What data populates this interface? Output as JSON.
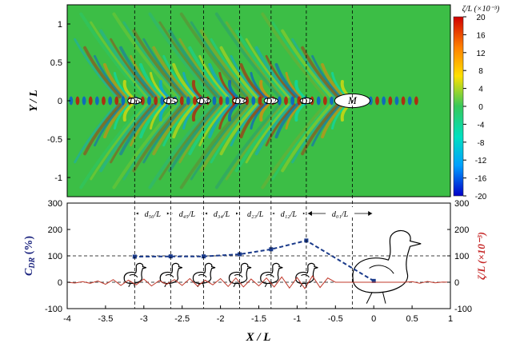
{
  "chart_data": [
    {
      "type": "heatmap",
      "xlim": [
        -4,
        1
      ],
      "ylim": [
        -1.25,
        1.25
      ],
      "y_ticks": [
        "1",
        "0.5",
        "0",
        "-0.5",
        "-1"
      ],
      "ylabel": "Y / L",
      "colorbar": {
        "title": "ζ/L (×10⁻³)",
        "range": [
          -20,
          20
        ],
        "ticks": [
          "20",
          "16",
          "12",
          "8",
          "4",
          "0",
          "-4",
          "-8",
          "-12",
          "-16",
          "-20"
        ],
        "colors": [
          "#0000c8",
          "#00a0ff",
          "#00e0c0",
          "#36c85a",
          "#ffe000",
          "#ff8000",
          "#d00000"
        ]
      },
      "background_color": "#3cbe46",
      "bodies": [
        {
          "label": "M",
          "x": -0.28,
          "y": 0,
          "rx": 0.23,
          "ry": 0.09
        },
        {
          "label": "D1",
          "x": -0.88,
          "y": 0,
          "rx": 0.08,
          "ry": 0.038
        },
        {
          "label": "D2",
          "x": -1.34,
          "y": 0,
          "rx": 0.09,
          "ry": 0.04
        },
        {
          "label": "D3",
          "x": -1.75,
          "y": 0,
          "rx": 0.09,
          "ry": 0.04
        },
        {
          "label": "D4",
          "x": -2.22,
          "y": 0,
          "rx": 0.09,
          "ry": 0.04
        },
        {
          "label": "D5",
          "x": -2.65,
          "y": 0,
          "rx": 0.09,
          "ry": 0.04
        },
        {
          "label": "D6",
          "x": -3.12,
          "y": 0,
          "rx": 0.09,
          "ry": 0.04
        }
      ]
    },
    {
      "type": "line",
      "xlabel": "X / L",
      "xlim": [
        -4,
        1
      ],
      "x_ticks": [
        "-4",
        "-3.5",
        "-3",
        "-2.5",
        "-2",
        "-1.5",
        "-1",
        "-0.5",
        "0",
        "0.5",
        "1"
      ],
      "left_axis": {
        "label": "C_DR (%)",
        "label_main": "C",
        "label_sub": "DR",
        "label_unit": " (%)",
        "range": [
          -100,
          300
        ],
        "ticks": [
          "300",
          "200",
          "100",
          "0",
          "-100"
        ],
        "color": "#1a237e"
      },
      "right_axis": {
        "label": "ζ/L (×10⁻³)",
        "range": [
          -100,
          300
        ],
        "ticks": [
          "300",
          "200",
          "100",
          "0",
          "-100"
        ],
        "color": "#c62828"
      },
      "series": [
        {
          "axis": "left",
          "color": "#1a3a8a",
          "x": [
            0,
            -0.88,
            -1.34,
            -1.75,
            -2.22,
            -2.65,
            -3.12
          ],
          "y": [
            5,
            158,
            125,
            106,
            98,
            98,
            97
          ]
        },
        {
          "axis": "right",
          "color": "#c0392b",
          "x": [
            -4,
            -3.9,
            -3.8,
            -3.7,
            -3.6,
            -3.5,
            -3.4,
            -3.3,
            -3.2,
            -3.1,
            -3.0,
            -2.9,
            -2.8,
            -2.7,
            -2.6,
            -2.5,
            -2.4,
            -2.3,
            -2.2,
            -2.1,
            -2.0,
            -1.9,
            -1.8,
            -1.7,
            -1.6,
            -1.5,
            -1.4,
            -1.3,
            -1.2,
            -1.1,
            -1.0,
            -0.9,
            -0.8,
            -0.7,
            -0.6,
            -0.5,
            -0.4,
            -0.3,
            -0.2,
            -0.1,
            0,
            0.1,
            0.2,
            0.3,
            0.4,
            0.5,
            0.6,
            0.7,
            0.8,
            0.9,
            1.0
          ],
          "y": [
            0,
            -3,
            2,
            -4,
            5,
            -8,
            10,
            -12,
            8,
            -10,
            12,
            -14,
            6,
            -8,
            10,
            -12,
            14,
            -15,
            8,
            -10,
            14,
            -16,
            16,
            -18,
            12,
            -14,
            16,
            -18,
            20,
            -22,
            18,
            -24,
            24,
            -20,
            16,
            0,
            0,
            0,
            0,
            0,
            0,
            0,
            0,
            0,
            0,
            2,
            -4,
            3,
            -2,
            1,
            0
          ]
        }
      ],
      "reference_lines": {
        "y_values": [
          0,
          100
        ]
      },
      "spacing_labels": [
        "d₅₆/L",
        "d₄₅/L",
        "d₃₄/L",
        "d₂₃/L",
        "d₁₂/L",
        "d₀₁/L"
      ],
      "ducklings_x": [
        -3.12,
        -2.65,
        -2.22,
        -1.75,
        -1.34,
        -0.88
      ]
    }
  ]
}
